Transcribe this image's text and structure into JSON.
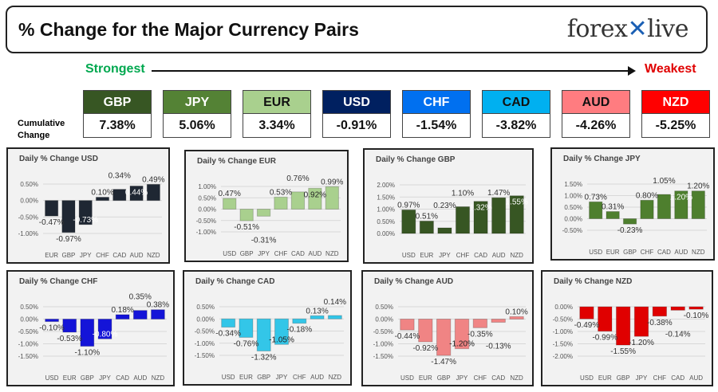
{
  "header": {
    "title": "% Change for the Major Currency Pairs",
    "logo_text": "forexlive"
  },
  "strongest_label": "Strongest",
  "weakest_label": "Weakest",
  "cumulative_label": "Cumulative Change",
  "currencies": [
    {
      "code": "GBP",
      "value": "7.38%",
      "color": "#375623",
      "text": "#fff"
    },
    {
      "code": "JPY",
      "value": "5.06%",
      "color": "#548235",
      "text": "#fff"
    },
    {
      "code": "EUR",
      "value": "3.34%",
      "color": "#a9d08e",
      "text": "#111"
    },
    {
      "code": "USD",
      "value": "-0.91%",
      "color": "#002060",
      "text": "#fff"
    },
    {
      "code": "CHF",
      "value": "-1.54%",
      "color": "#0070f0",
      "text": "#fff"
    },
    {
      "code": "CAD",
      "value": "-3.82%",
      "color": "#00b0f0",
      "text": "#111"
    },
    {
      "code": "AUD",
      "value": "-4.26%",
      "color": "#ff7c80",
      "text": "#111"
    },
    {
      "code": "NZD",
      "value": "-5.25%",
      "color": "#ff0000",
      "text": "#fff"
    }
  ],
  "chart_data": [
    {
      "type": "bar",
      "title": "Daily % Change USD",
      "categories": [
        "EUR",
        "GBP",
        "JPY",
        "CHF",
        "CAD",
        "AUD",
        "NZD"
      ],
      "values": [
        -0.47,
        -0.97,
        -0.73,
        0.1,
        0.34,
        0.44,
        0.49
      ],
      "ylim": [
        -1.0,
        0.5
      ],
      "yticks": [
        "0.50%",
        "0.00%",
        "-0.50%",
        "-1.00%"
      ],
      "color": "#1f2733",
      "grid": true
    },
    {
      "type": "bar",
      "title": "Daily % Change EUR",
      "categories": [
        "USD",
        "GBP",
        "JPY",
        "CHF",
        "CAD",
        "AUD",
        "NZD"
      ],
      "values": [
        0.47,
        -0.51,
        -0.31,
        0.53,
        0.76,
        0.92,
        0.99
      ],
      "ylim": [
        -1.0,
        1.0
      ],
      "yticks": [
        "1.00%",
        "0.50%",
        "0.00%",
        "-0.50%",
        "-1.00%"
      ],
      "color": "#a9d08e",
      "grid": true
    },
    {
      "type": "bar",
      "title": "Daily % Change GBP",
      "categories": [
        "USD",
        "EUR",
        "JPY",
        "CHF",
        "CAD",
        "AUD",
        "NZD"
      ],
      "values": [
        0.97,
        0.51,
        0.23,
        1.1,
        1.32,
        1.47,
        1.55
      ],
      "ylim": [
        0,
        2.0
      ],
      "yticks": [
        "2.00%",
        "1.50%",
        "1.00%",
        "0.50%",
        "0.00%"
      ],
      "color": "#375623",
      "grid": true
    },
    {
      "type": "bar",
      "title": "Daily % Change JPY",
      "categories": [
        "USD",
        "EUR",
        "GBP",
        "CHF",
        "CAD",
        "AUD",
        "NZD"
      ],
      "values": [
        0.73,
        0.31,
        -0.23,
        0.8,
        1.05,
        1.2,
        1.2
      ],
      "ylim": [
        -0.5,
        1.5
      ],
      "yticks": [
        "1.50%",
        "1.00%",
        "0.50%",
        "0.00%",
        "-0.50%"
      ],
      "color": "#4e7f2e",
      "grid": true
    },
    {
      "type": "bar",
      "title": "Daily % Change CHF",
      "categories": [
        "USD",
        "EUR",
        "GBP",
        "JPY",
        "CAD",
        "AUD",
        "NZD"
      ],
      "values": [
        -0.1,
        -0.53,
        -1.1,
        -0.8,
        0.18,
        0.35,
        0.38
      ],
      "ylim": [
        -1.5,
        0.5
      ],
      "yticks": [
        "0.50%",
        "0.00%",
        "-0.50%",
        "-1.00%",
        "-1.50%"
      ],
      "color": "#1414d8",
      "grid": true
    },
    {
      "type": "bar",
      "title": "Daily % Change CAD",
      "categories": [
        "USD",
        "EUR",
        "GBP",
        "JPY",
        "CHF",
        "AUD",
        "NZD"
      ],
      "values": [
        -0.34,
        -0.76,
        -1.32,
        -1.05,
        -0.18,
        0.13,
        0.14
      ],
      "ylim": [
        -1.5,
        0.5
      ],
      "yticks": [
        "0.50%",
        "0.00%",
        "-0.50%",
        "-1.00%",
        "-1.50%"
      ],
      "color": "#33c6e8",
      "grid": true
    },
    {
      "type": "bar",
      "title": "Daily % Change AUD",
      "categories": [
        "USD",
        "EUR",
        "GBP",
        "JPY",
        "CHF",
        "CAD",
        "NZD"
      ],
      "values": [
        -0.44,
        -0.92,
        -1.47,
        -1.2,
        -0.35,
        -0.13,
        0.1
      ],
      "ylim": [
        -1.5,
        0.5
      ],
      "yticks": [
        "0.50%",
        "0.00%",
        "-0.50%",
        "-1.00%",
        "-1.50%"
      ],
      "color": "#f08484",
      "grid": true
    },
    {
      "type": "bar",
      "title": "Daily % Change NZD",
      "categories": [
        "USD",
        "EUR",
        "GBP",
        "JPY",
        "CHF",
        "CAD",
        "AUD"
      ],
      "values": [
        -0.49,
        -0.99,
        -1.55,
        -1.2,
        -0.38,
        -0.14,
        -0.1
      ],
      "ylim": [
        -2.0,
        0
      ],
      "yticks": [
        "0.00%",
        "-0.50%",
        "-1.00%",
        "-1.50%",
        "-2.00%"
      ],
      "color": "#e00000",
      "grid": true
    }
  ]
}
